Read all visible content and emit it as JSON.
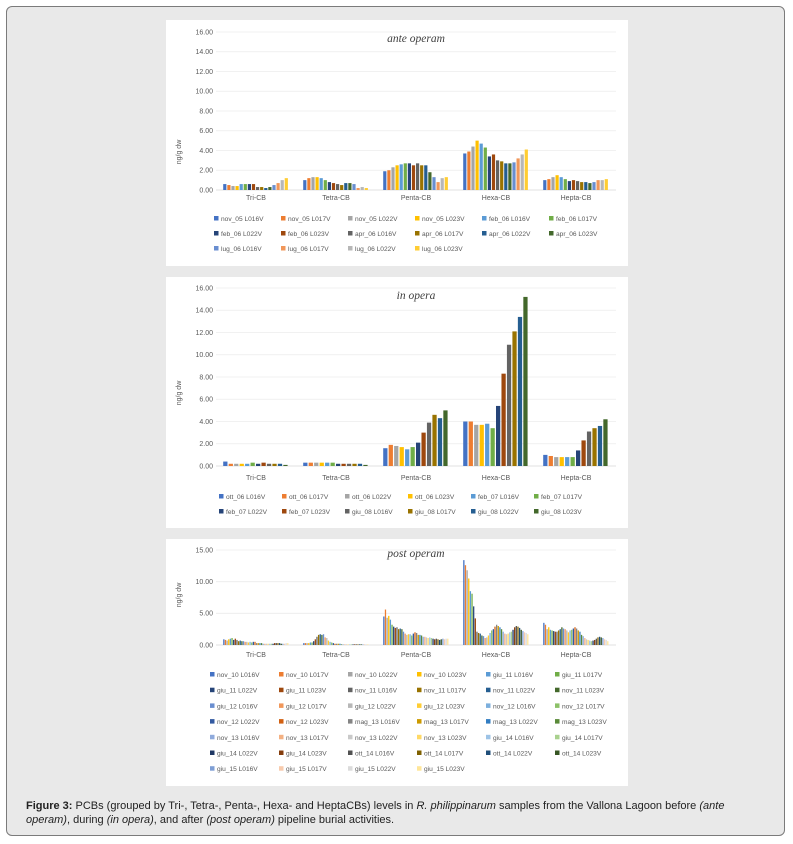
{
  "caption": {
    "label": "Figure 3:",
    "t1": " PCBs (grouped by Tri-, Tetra-, Penta-, Hexa- and HeptaCBs) levels in ",
    "species": "R. philippinarum",
    "t2": " samples from the Vallona Lagoon before ",
    "ante": "(ante operam)",
    "t3": ", during ",
    "in": "(in opera)",
    "t4": ", and after ",
    "post": "(post operam)",
    "t5": " pipeline burial activities."
  },
  "chart_data": [
    {
      "type": "bar",
      "title": "ante operam",
      "ylabel": "ng/g dw",
      "ylim": [
        0,
        16
      ],
      "yticks": [
        "0.00",
        "2.00",
        "4.00",
        "6.00",
        "8.00",
        "10.00",
        "12.00",
        "14.00",
        "16.00"
      ],
      "categories": [
        "Tri-CB",
        "Tetra-CB",
        "Penta-CB",
        "Hexa-CB",
        "Hepta-CB"
      ],
      "series": [
        {
          "name": "nov_05 L016V",
          "color": "#4472c4",
          "values": [
            0.6,
            1.0,
            1.9,
            3.7,
            1.0
          ]
        },
        {
          "name": "nov_05 L017V",
          "color": "#ed7d31",
          "values": [
            0.5,
            1.2,
            2.0,
            3.9,
            1.1
          ]
        },
        {
          "name": "nov_05 L022V",
          "color": "#a5a5a5",
          "values": [
            0.4,
            1.3,
            2.3,
            4.4,
            1.3
          ]
        },
        {
          "name": "nov_05 L023V",
          "color": "#ffc000",
          "values": [
            0.4,
            1.3,
            2.5,
            5.0,
            1.5
          ]
        },
        {
          "name": "feb_06 L016V",
          "color": "#5b9bd5",
          "values": [
            0.6,
            1.2,
            2.6,
            4.7,
            1.3
          ]
        },
        {
          "name": "feb_06 L017V",
          "color": "#70ad47",
          "values": [
            0.6,
            1.0,
            2.7,
            4.3,
            1.1
          ]
        },
        {
          "name": "feb_06 L022V",
          "color": "#264478",
          "values": [
            0.6,
            0.8,
            2.7,
            3.4,
            0.9
          ]
        },
        {
          "name": "feb_06 L023V",
          "color": "#9e480e",
          "values": [
            0.6,
            0.7,
            2.5,
            3.6,
            1.0
          ]
        },
        {
          "name": "apr_06 L016V",
          "color": "#636363",
          "values": [
            0.3,
            0.6,
            2.7,
            3.0,
            0.9
          ]
        },
        {
          "name": "apr_06 L017V",
          "color": "#997300",
          "values": [
            0.3,
            0.5,
            2.5,
            2.9,
            0.8
          ]
        },
        {
          "name": "apr_06 L022V",
          "color": "#255e91",
          "values": [
            0.2,
            0.7,
            2.5,
            2.7,
            0.8
          ]
        },
        {
          "name": "apr_06 L023V",
          "color": "#43682b",
          "values": [
            0.3,
            0.7,
            1.8,
            2.7,
            0.7
          ]
        },
        {
          "name": "lug_06 L016V",
          "color": "#698ed0",
          "values": [
            0.5,
            0.6,
            1.3,
            2.8,
            0.8
          ]
        },
        {
          "name": "lug_06 L017V",
          "color": "#f1975a",
          "values": [
            0.7,
            0.2,
            0.8,
            3.2,
            1.0
          ]
        },
        {
          "name": "lug_06 L022V",
          "color": "#b7b7b7",
          "values": [
            1.0,
            0.3,
            1.2,
            3.6,
            1.0
          ]
        },
        {
          "name": "lug_06 L023V",
          "color": "#ffcd33",
          "values": [
            1.2,
            0.2,
            1.3,
            4.1,
            1.1
          ]
        }
      ]
    },
    {
      "type": "bar",
      "title": "in opera",
      "ylabel": "ng/g dw",
      "ylim": [
        0,
        16
      ],
      "yticks": [
        "0.00",
        "2.00",
        "4.00",
        "6.00",
        "8.00",
        "10.00",
        "12.00",
        "14.00",
        "16.00"
      ],
      "categories": [
        "Tri-CB",
        "Tetra-CB",
        "Penta-CB",
        "Hexa-CB",
        "Hepta-CB"
      ],
      "series": [
        {
          "name": "ott_06 L016V",
          "color": "#4472c4",
          "values": [
            0.4,
            0.3,
            1.6,
            4.0,
            1.0
          ]
        },
        {
          "name": "ott_06 L017V",
          "color": "#ed7d31",
          "values": [
            0.2,
            0.3,
            1.9,
            4.0,
            0.9
          ]
        },
        {
          "name": "ott_06 L022V",
          "color": "#a5a5a5",
          "values": [
            0.2,
            0.3,
            1.8,
            3.7,
            0.8
          ]
        },
        {
          "name": "ott_06 L023V",
          "color": "#ffc000",
          "values": [
            0.2,
            0.3,
            1.7,
            3.7,
            0.8
          ]
        },
        {
          "name": "feb_07 L016V",
          "color": "#5b9bd5",
          "values": [
            0.2,
            0.3,
            1.5,
            3.8,
            0.8
          ]
        },
        {
          "name": "feb_07 L017V",
          "color": "#70ad47",
          "values": [
            0.3,
            0.3,
            1.7,
            3.4,
            0.8
          ]
        },
        {
          "name": "feb_07 L022V",
          "color": "#264478",
          "values": [
            0.2,
            0.2,
            2.1,
            5.4,
            1.4
          ]
        },
        {
          "name": "feb_07 L023V",
          "color": "#9e480e",
          "values": [
            0.3,
            0.2,
            3.0,
            8.3,
            2.3
          ]
        },
        {
          "name": "giu_08 L016V",
          "color": "#636363",
          "values": [
            0.2,
            0.2,
            3.9,
            10.9,
            3.1
          ]
        },
        {
          "name": "giu_08 L017V",
          "color": "#997300",
          "values": [
            0.2,
            0.2,
            4.6,
            12.1,
            3.4
          ]
        },
        {
          "name": "giu_08 L022V",
          "color": "#255e91",
          "values": [
            0.2,
            0.2,
            4.3,
            13.4,
            3.6
          ]
        },
        {
          "name": "giu_08 L023V",
          "color": "#43682b",
          "values": [
            0.1,
            0.1,
            5.0,
            15.2,
            4.2
          ]
        }
      ]
    },
    {
      "type": "bar",
      "title": "post operam",
      "ylabel": "ng/g dw",
      "ylim": [
        0,
        15
      ],
      "yticks": [
        "0.00",
        "5.00",
        "10.00",
        "15.00"
      ],
      "categories": [
        "Tri-CB",
        "Tetra-CB",
        "Penta-CB",
        "Hexa-CB",
        "Hepta-CB"
      ],
      "series": [
        {
          "name": "nov_10 L016V",
          "color": "#4472c4",
          "values": [
            0.9,
            0.3,
            4.5,
            13.4,
            3.5
          ]
        },
        {
          "name": "nov_10 L017V",
          "color": "#ed7d31",
          "values": [
            0.8,
            0.3,
            5.6,
            12.6,
            3.2
          ]
        },
        {
          "name": "nov_10 L022V",
          "color": "#a5a5a5",
          "values": [
            0.7,
            0.3,
            4.3,
            11.8,
            2.5
          ]
        },
        {
          "name": "nov_10 L023V",
          "color": "#ffc000",
          "values": [
            0.9,
            0.3,
            4.6,
            10.5,
            2.8
          ]
        },
        {
          "name": "giu_11 L016V",
          "color": "#5b9bd5",
          "values": [
            1.0,
            0.4,
            4.0,
            8.5,
            2.4
          ]
        },
        {
          "name": "giu_11 L017V",
          "color": "#70ad47",
          "values": [
            1.1,
            0.4,
            3.2,
            8.1,
            2.3
          ]
        },
        {
          "name": "giu_11 L022V",
          "color": "#264478",
          "values": [
            0.8,
            0.6,
            2.9,
            6.1,
            2.2
          ]
        },
        {
          "name": "giu_11 L023V",
          "color": "#9e480e",
          "values": [
            1.0,
            0.9,
            2.7,
            4.2,
            2.1
          ]
        },
        {
          "name": "nov_11 L016V",
          "color": "#636363",
          "values": [
            0.8,
            1.3,
            2.8,
            2.1,
            2.1
          ]
        },
        {
          "name": "nov_11 L017V",
          "color": "#997300",
          "values": [
            0.6,
            1.6,
            2.5,
            1.9,
            2.3
          ]
        },
        {
          "name": "nov_11 L022V",
          "color": "#255e91",
          "values": [
            0.7,
            1.7,
            2.6,
            1.8,
            2.5
          ]
        },
        {
          "name": "nov_11 L023V",
          "color": "#43682b",
          "values": [
            0.6,
            1.6,
            2.5,
            1.5,
            2.8
          ]
        },
        {
          "name": "giu_12 L016V",
          "color": "#698ed0",
          "values": [
            0.6,
            1.7,
            2.1,
            1.4,
            2.6
          ]
        },
        {
          "name": "giu_12 L017V",
          "color": "#f1975a",
          "values": [
            0.5,
            1.2,
            1.8,
            1.1,
            2.5
          ]
        },
        {
          "name": "giu_12 L022V",
          "color": "#b7b7b7",
          "values": [
            0.5,
            1.1,
            1.6,
            1.2,
            2.3
          ]
        },
        {
          "name": "giu_12 L023V",
          "color": "#ffcd33",
          "values": [
            0.4,
            0.7,
            1.7,
            1.5,
            2.0
          ]
        },
        {
          "name": "nov_12 L016V",
          "color": "#7cafdd",
          "values": [
            0.5,
            0.5,
            1.7,
            1.9,
            2.3
          ]
        },
        {
          "name": "nov_12 L017V",
          "color": "#8cc168",
          "values": [
            0.4,
            0.4,
            1.5,
            2.3,
            2.4
          ]
        },
        {
          "name": "nov_12 L022V",
          "color": "#335aa1",
          "values": [
            0.5,
            0.3,
            1.8,
            2.5,
            2.6
          ]
        },
        {
          "name": "nov_12 L023V",
          "color": "#d26012",
          "values": [
            0.5,
            0.2,
            2.0,
            2.9,
            2.8
          ]
        },
        {
          "name": "mag_13 L016V",
          "color": "#848484",
          "values": [
            0.3,
            0.2,
            1.9,
            3.2,
            2.6
          ]
        },
        {
          "name": "mag_13 L017V",
          "color": "#cc9a00",
          "values": [
            0.3,
            0.2,
            1.6,
            3.0,
            2.3
          ]
        },
        {
          "name": "mag_13 L022V",
          "color": "#327dc2",
          "values": [
            0.3,
            0.2,
            1.6,
            2.8,
            2.1
          ]
        },
        {
          "name": "mag_13 L023V",
          "color": "#5a8a39",
          "values": [
            0.3,
            0.1,
            1.5,
            2.5,
            1.6
          ]
        },
        {
          "name": "nov_13 L016V",
          "color": "#8faadc",
          "values": [
            0.2,
            0.1,
            1.3,
            2.1,
            1.4
          ]
        },
        {
          "name": "nov_13 L017V",
          "color": "#f4b183",
          "values": [
            0.2,
            0.1,
            1.3,
            1.8,
            1.1
          ]
        },
        {
          "name": "nov_13 L022V",
          "color": "#c9c9c9",
          "values": [
            0.2,
            0.1,
            1.2,
            1.7,
            0.9
          ]
        },
        {
          "name": "nov_13 L023V",
          "color": "#ffd966",
          "values": [
            0.2,
            0.1,
            1.1,
            1.8,
            0.8
          ]
        },
        {
          "name": "giu_14 L016V",
          "color": "#9dc3e6",
          "values": [
            0.2,
            0.1,
            1.2,
            2.0,
            0.7
          ]
        },
        {
          "name": "giu_14 L017V",
          "color": "#a9d18e",
          "values": [
            0.2,
            0.1,
            1.1,
            2.1,
            0.6
          ]
        },
        {
          "name": "giu_14 L022V",
          "color": "#1f3864",
          "values": [
            0.2,
            0.1,
            1.0,
            2.4,
            0.7
          ]
        },
        {
          "name": "giu_14 L023V",
          "color": "#843c0c",
          "values": [
            0.3,
            0.1,
            0.9,
            2.8,
            0.8
          ]
        },
        {
          "name": "ott_14 L016V",
          "color": "#525252",
          "values": [
            0.3,
            0.1,
            1.0,
            3.0,
            1.0
          ]
        },
        {
          "name": "ott_14 L017V",
          "color": "#7f6000",
          "values": [
            0.3,
            0.1,
            0.9,
            2.9,
            1.2
          ]
        },
        {
          "name": "ott_14 L022V",
          "color": "#1f4e79",
          "values": [
            0.3,
            0.1,
            0.8,
            2.7,
            1.3
          ]
        },
        {
          "name": "ott_14 L023V",
          "color": "#375623",
          "values": [
            0.2,
            0.1,
            0.9,
            2.4,
            1.2
          ]
        },
        {
          "name": "giu_15 L016V",
          "color": "#7f9fd5",
          "values": [
            0.2,
            0.1,
            1.0,
            2.2,
            1.1
          ]
        },
        {
          "name": "giu_15 L017V",
          "color": "#f8cbad",
          "values": [
            0.2,
            0.1,
            0.9,
            2.0,
            0.9
          ]
        },
        {
          "name": "giu_15 L022V",
          "color": "#dbdbdb",
          "values": [
            0.3,
            0.1,
            1.0,
            1.9,
            0.8
          ]
        },
        {
          "name": "giu_15 L023V",
          "color": "#ffe699",
          "values": [
            0.3,
            0.1,
            1.0,
            1.7,
            0.6
          ]
        }
      ]
    }
  ]
}
